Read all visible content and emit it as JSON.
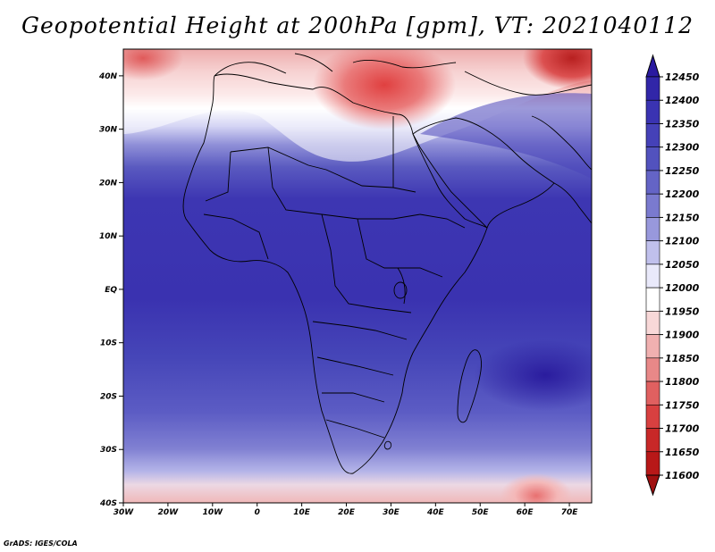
{
  "title": "Geopotential Height at 200hPa [gpm], VT: 2021040112",
  "credit": "GrADS: IGES/COLA",
  "map": {
    "lon_range": [
      -30,
      75
    ],
    "lat_range": [
      -40,
      45
    ],
    "lat_labels": [
      "40N",
      "30N",
      "20N",
      "10N",
      "EQ",
      "10S",
      "20S",
      "30S",
      "40S"
    ],
    "lat_values": [
      40,
      30,
      20,
      10,
      0,
      -10,
      -20,
      -30,
      -40
    ],
    "lon_labels": [
      "30W",
      "20W",
      "10W",
      "0",
      "10E",
      "20E",
      "30E",
      "40E",
      "50E",
      "60E",
      "70E"
    ],
    "lon_values": [
      -30,
      -20,
      -10,
      0,
      10,
      20,
      30,
      40,
      50,
      60,
      70
    ]
  },
  "colorbar": {
    "levels": [
      "12450",
      "12400",
      "12350",
      "12300",
      "12250",
      "12200",
      "12150",
      "12100",
      "12050",
      "12000",
      "11950",
      "11900",
      "11850",
      "11800",
      "11750",
      "11700",
      "11650",
      "11600"
    ],
    "colors": [
      "#2a1aa0",
      "#3126a8",
      "#3a33b2",
      "#4541b8",
      "#5252be",
      "#6464c6",
      "#7a7acf",
      "#9898dc",
      "#c0c0ec",
      "#e9e9fa",
      "#ffffff",
      "#f8d8d8",
      "#f0b0b0",
      "#e88888",
      "#e06060",
      "#d84040",
      "#c82828",
      "#b81818",
      "#a01010"
    ]
  }
}
